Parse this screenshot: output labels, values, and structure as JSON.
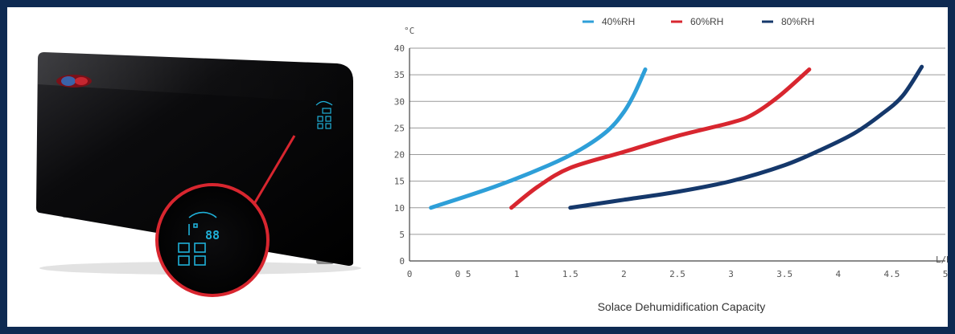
{
  "chart_data": {
    "type": "line",
    "title": "",
    "xlabel": "Solace Dehumidification Capacity",
    "ylabel": "°C",
    "x_unit": "L/D",
    "xlim": [
      0,
      5
    ],
    "ylim": [
      0,
      40
    ],
    "grid": "horizontal",
    "legend_position": "top",
    "x_ticks": [
      "0",
      "0 5",
      "1",
      "1.5",
      "2",
      "2.5",
      "3",
      "3.5",
      "4",
      "4.5",
      "5"
    ],
    "y_ticks": [
      "0",
      "5",
      "10",
      "15",
      "20",
      "25",
      "30",
      "35",
      "40"
    ],
    "series": [
      {
        "name": "40%RH",
        "color": "#2e9fd8",
        "points": [
          [
            0.2,
            10
          ],
          [
            0.8,
            14
          ],
          [
            1.3,
            18
          ],
          [
            1.6,
            21
          ],
          [
            1.85,
            24.5
          ],
          [
            2.0,
            28
          ],
          [
            2.1,
            31.5
          ],
          [
            2.2,
            36
          ]
        ]
      },
      {
        "name": "60%RH",
        "color": "#d8262f",
        "points": [
          [
            0.95,
            10
          ],
          [
            1.2,
            14
          ],
          [
            1.5,
            17.5
          ],
          [
            2.0,
            20.5
          ],
          [
            2.5,
            23.5
          ],
          [
            3.0,
            26
          ],
          [
            3.2,
            27.5
          ],
          [
            3.45,
            31
          ],
          [
            3.73,
            36
          ]
        ]
      },
      {
        "name": "80%RH",
        "color": "#15386b",
        "points": [
          [
            1.5,
            10
          ],
          [
            2.0,
            11.5
          ],
          [
            2.5,
            13
          ],
          [
            3.0,
            15
          ],
          [
            3.5,
            18
          ],
          [
            3.85,
            21
          ],
          [
            4.15,
            24
          ],
          [
            4.4,
            27.5
          ],
          [
            4.6,
            31
          ],
          [
            4.78,
            36.5
          ]
        ]
      }
    ]
  },
  "product": {
    "display_readout": "88"
  }
}
